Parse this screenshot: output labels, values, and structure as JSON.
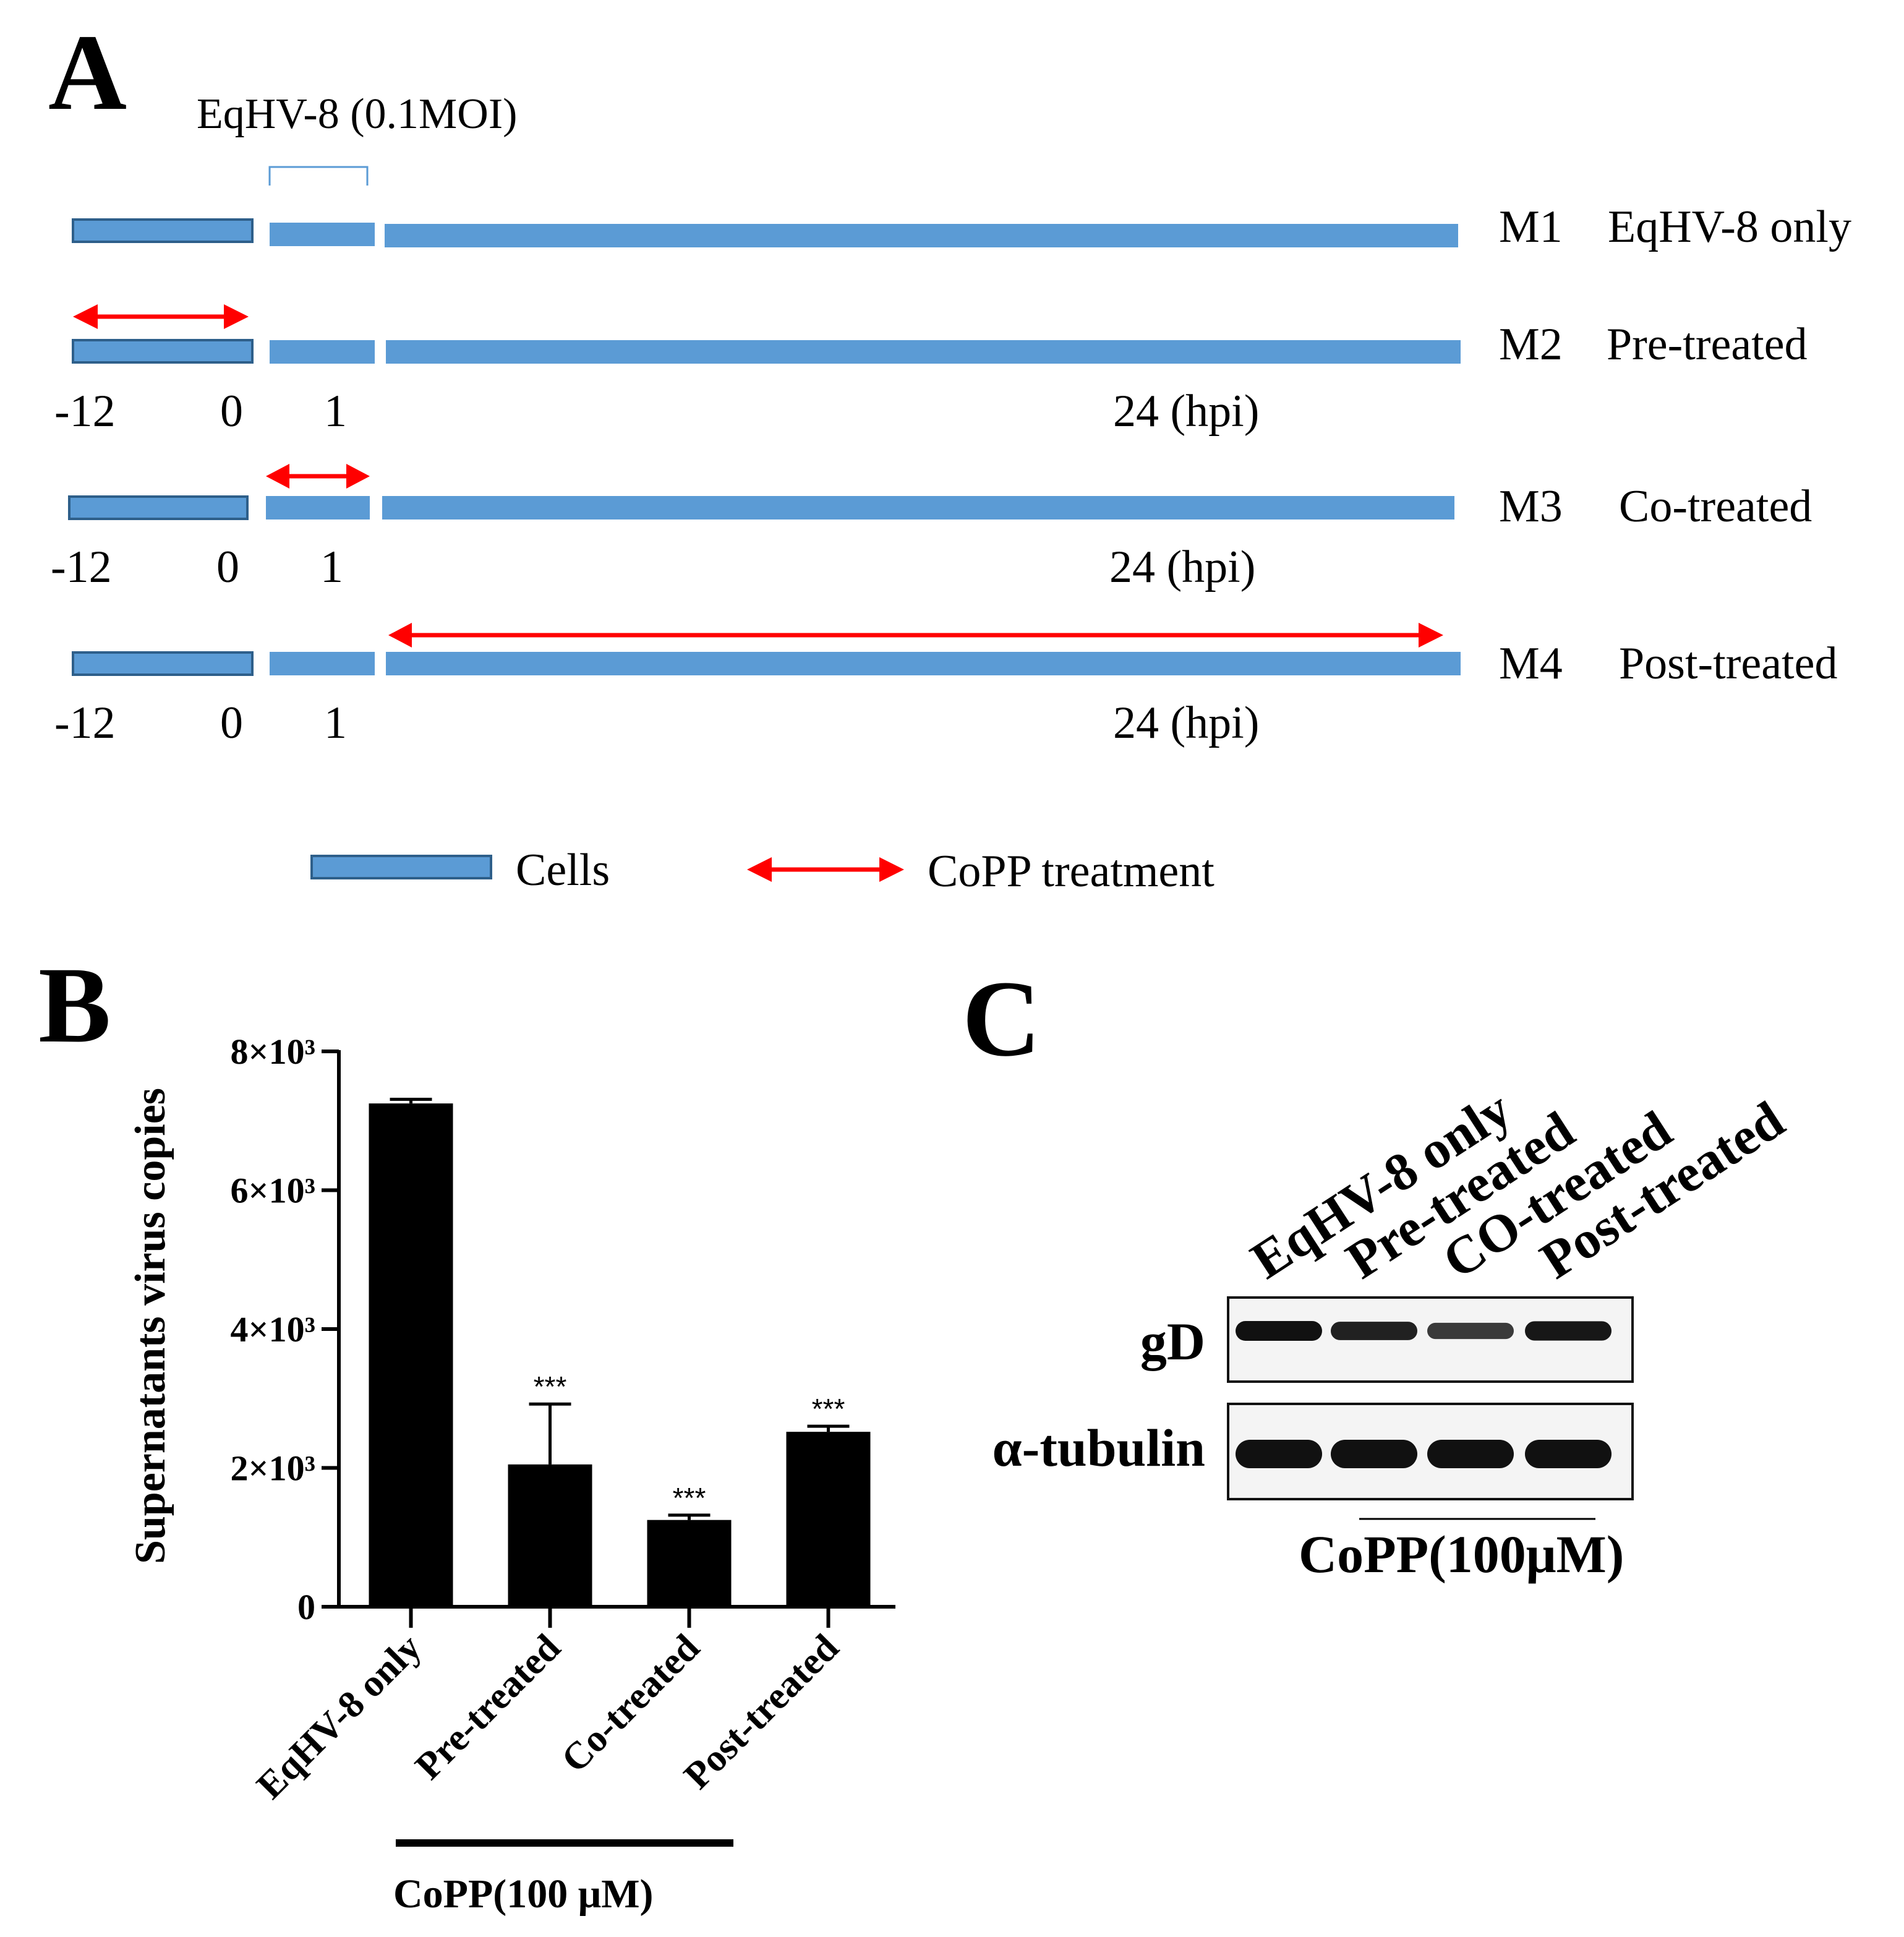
{
  "panels": {
    "A": {
      "letter": "A",
      "virus_label": "EqHV-8 (0.1MOI)",
      "rows": [
        {
          "id": "M1",
          "label": "EqHV-8 only",
          "treatment": "none",
          "ticks": null
        },
        {
          "id": "M2",
          "label": "Pre-treated",
          "treatment": "pre",
          "ticks": {
            "t1": "-12",
            "t2": "0",
            "t3": "1",
            "t4": "24 (hpi)"
          }
        },
        {
          "id": "M3",
          "label": "Co-treated",
          "treatment": "co",
          "ticks": {
            "t1": "-12",
            "t2": "0",
            "t3": "1",
            "t4": "24 (hpi)"
          }
        },
        {
          "id": "M4",
          "label": "Post-treated",
          "treatment": "post",
          "ticks": {
            "t1": "-12",
            "t2": "0",
            "t3": "1",
            "t4": "24 (hpi)"
          }
        }
      ],
      "legend": {
        "cells": "Cells",
        "treatment": "CoPP treatment"
      },
      "colors": {
        "cells": "#5b9bd5",
        "cells_border": "#2e5f8a",
        "arrow": "#ff0000"
      }
    },
    "B": {
      "letter": "B",
      "group_label": "CoPP(100 μM)"
    },
    "C": {
      "letter": "C",
      "lanes": [
        "EqHV-8 only",
        "Pre-treated",
        "CO-treated",
        "Post-treated"
      ],
      "blots": [
        {
          "name": "gD",
          "intensity": [
            1.0,
            0.85,
            0.6,
            0.95
          ]
        },
        {
          "name": "α-tubulin",
          "intensity": [
            1.0,
            1.0,
            1.0,
            1.0
          ]
        }
      ],
      "group_label": "CoPP(100μM)"
    }
  },
  "chart_data": {
    "type": "bar",
    "title": "",
    "xlabel": "",
    "ylabel": "Supernatants virus copies",
    "categories": [
      "EqHV-8 only",
      "Pre-treated",
      "Co-treated",
      "Post-treated"
    ],
    "values": [
      7250,
      2050,
      1250,
      2520
    ],
    "errors": [
      60,
      870,
      70,
      80
    ],
    "significance": [
      "",
      "***",
      "***",
      "***"
    ],
    "ylim": [
      0,
      8000
    ],
    "yticks": [
      0,
      2000,
      4000,
      6000,
      8000
    ],
    "ytick_labels": [
      "0",
      "2×10³",
      "4×10³",
      "6×10³",
      "8×10³"
    ],
    "bar_color": "#000000"
  }
}
